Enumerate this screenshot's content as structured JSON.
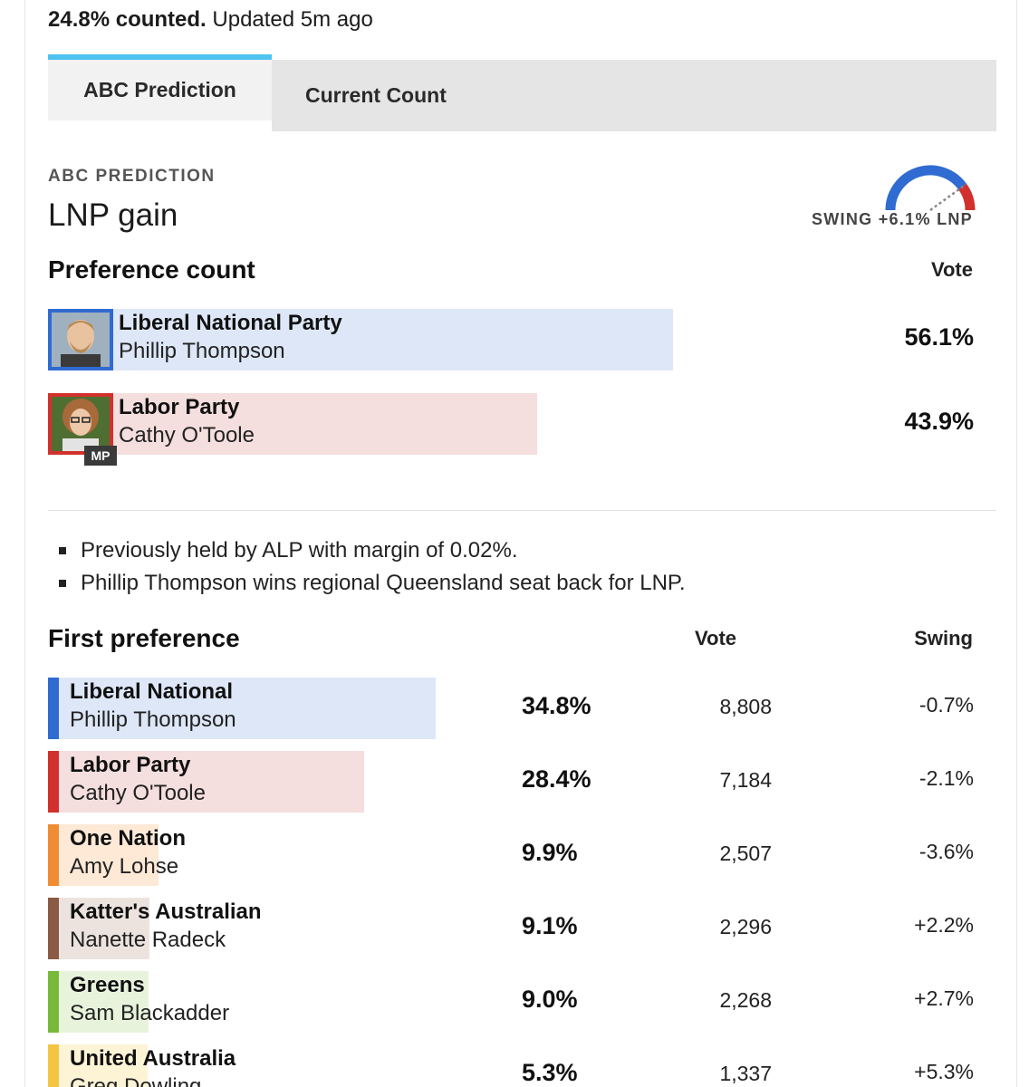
{
  "status": {
    "counted": "24.8% counted.",
    "updated": "Updated 5m ago"
  },
  "tabs": [
    {
      "label": "ABC Prediction",
      "active": true
    },
    {
      "label": "Current Count",
      "active": false
    }
  ],
  "prediction": {
    "label": "ABC PREDICTION",
    "result": "LNP gain",
    "swing_text": "SWING +6.1% LNP",
    "swing_value": 6.1,
    "colors": {
      "lnp": "#2f6bd1",
      "alp": "#d2302c"
    }
  },
  "preference_count": {
    "title": "Preference count",
    "vote_header": "Vote",
    "rows": [
      {
        "party": "Liberal National Party",
        "candidate": "Phillip Thompson",
        "pct": "56.1%",
        "value": 56.1,
        "bar_color": "#dde7f7",
        "border_color": "#2f6bd1",
        "mp": false
      },
      {
        "party": "Labor Party",
        "candidate": "Cathy O'Toole",
        "pct": "43.9%",
        "value": 43.9,
        "bar_color": "#f5dede",
        "border_color": "#d2302c",
        "mp": true,
        "mp_label": "MP"
      }
    ]
  },
  "notes": [
    "Previously held by ALP with margin of 0.02%.",
    "Phillip Thompson wins regional Queensland seat back for LNP."
  ],
  "first_preference": {
    "title": "First preference",
    "vote_header": "Vote",
    "swing_header": "Swing",
    "rows": [
      {
        "party": "Liberal National",
        "candidate": "Phillip Thompson",
        "pct": "34.8%",
        "value": 34.8,
        "votes": "8,808",
        "swing": "-0.7%",
        "stripe": "#2f6bd1",
        "bar": "#dde7f7"
      },
      {
        "party": "Labor Party",
        "candidate": "Cathy O'Toole",
        "pct": "28.4%",
        "value": 28.4,
        "votes": "7,184",
        "swing": "-2.1%",
        "stripe": "#d2302c",
        "bar": "#f5dede"
      },
      {
        "party": "One Nation",
        "candidate": "Amy Lohse",
        "pct": "9.9%",
        "value": 9.9,
        "votes": "2,507",
        "swing": "-3.6%",
        "stripe": "#f08c33",
        "bar": "#fde9d6"
      },
      {
        "party": "Katter's Australian",
        "candidate": "Nanette Radeck",
        "pct": "9.1%",
        "value": 9.1,
        "votes": "2,296",
        "swing": "+2.2%",
        "stripe": "#8a5a44",
        "bar": "#ece3df"
      },
      {
        "party": "Greens",
        "candidate": "Sam Blackadder",
        "pct": "9.0%",
        "value": 9.0,
        "votes": "2,268",
        "swing": "+2.7%",
        "stripe": "#78b93a",
        "bar": "#e8f3dc"
      },
      {
        "party": "United Australia",
        "candidate": "Greg Dowling",
        "pct": "5.3%",
        "value": 5.3,
        "votes": "1,337",
        "swing": "+5.3%",
        "stripe": "#f4c542",
        "bar": "#fdf4d6"
      }
    ]
  }
}
